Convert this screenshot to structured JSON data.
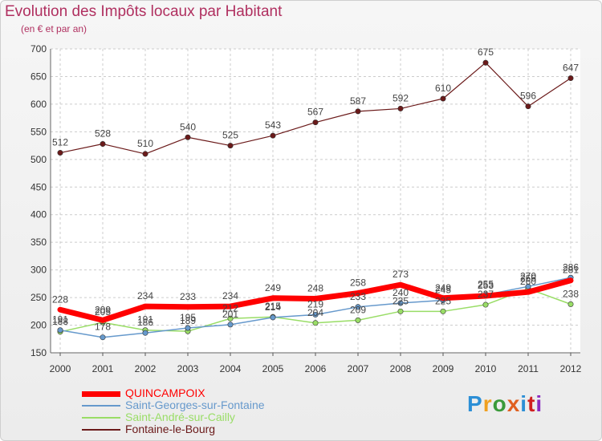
{
  "title": "Evolution des Impôts locaux par Habitant",
  "subtitle": "(en € et par an)",
  "logo": {
    "text": "Proxiti",
    "colors": [
      "#2c8fd6",
      "#f0a020",
      "#3a9a3a",
      "#e06020",
      "#2c8fd6",
      "#d02020",
      "#8a2cc0"
    ]
  },
  "chart_data": {
    "type": "line",
    "x": [
      "2000",
      "2001",
      "2002",
      "2003",
      "2004",
      "2005",
      "2006",
      "2007",
      "2008",
      "2009",
      "2010",
      "2011",
      "2012"
    ],
    "ylim": [
      150,
      700
    ],
    "yticks": [
      150,
      200,
      250,
      300,
      350,
      400,
      450,
      500,
      550,
      600,
      650,
      700
    ],
    "grid": true,
    "legend_position": "bottom-left",
    "series": [
      {
        "name": "QUINCAMPOIX",
        "color": "#ff0000",
        "values": [
          228,
          209,
          234,
          233,
          234,
          249,
          248,
          258,
          273,
          249,
          253,
          260,
          281
        ]
      },
      {
        "name": "Saint-Georges-sur-Fontaine",
        "color": "#6699cc",
        "values": [
          191,
          178,
          186,
          195,
          201,
          214,
          219,
          233,
          240,
          245,
          255,
          270,
          286
        ]
      },
      {
        "name": "Saint-André-sur-Cailly",
        "color": "#99dd66",
        "values": [
          188,
          205,
          191,
          189,
          212,
          215,
          204,
          209,
          225,
          225,
          237,
          266,
          238
        ]
      },
      {
        "name": "Fontaine-le-Bourg",
        "color": "#6b1a1a",
        "values": [
          512,
          528,
          510,
          540,
          525,
          543,
          567,
          587,
          592,
          610,
          675,
          596,
          647
        ]
      }
    ]
  }
}
